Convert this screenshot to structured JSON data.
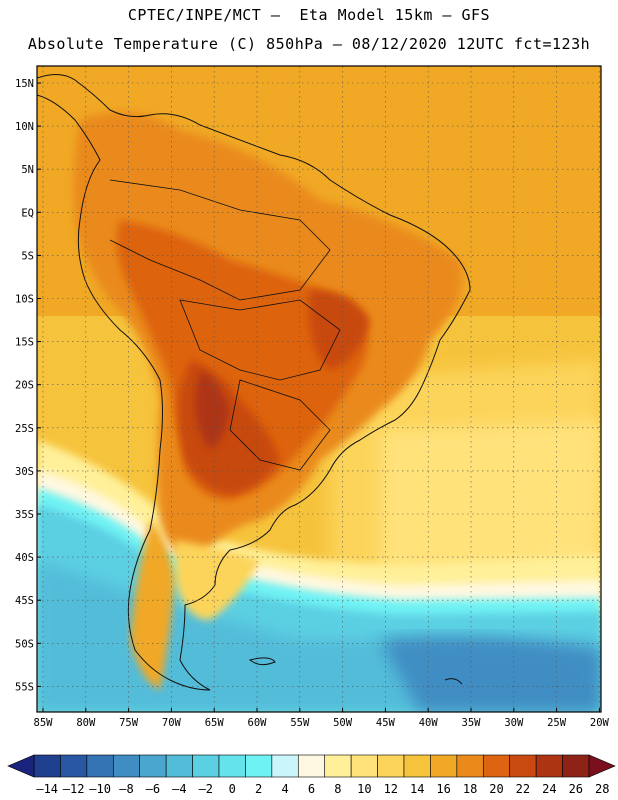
{
  "header": {
    "line1": "CPTEC/INPE/MCT –  Eta Model 15km – GFS",
    "line2": "Absolute Temperature (C) 850hPa – 08/12/2020 12UTC fct=123h"
  },
  "axes": {
    "lat_labels": [
      "15N",
      "10N",
      "5N",
      "EQ",
      "5S",
      "10S",
      "15S",
      "20S",
      "25S",
      "30S",
      "35S",
      "40S",
      "45S",
      "50S",
      "55S"
    ],
    "lon_labels": [
      "85W",
      "80W",
      "75W",
      "70W",
      "65W",
      "60W",
      "55W",
      "50W",
      "45W",
      "40W",
      "35W",
      "30W",
      "25W",
      "20W"
    ]
  },
  "colorbar": {
    "labels": [
      "–14",
      "–12",
      "–10",
      "–8",
      "–6",
      "–4",
      "–2",
      "0",
      "2",
      "4",
      "6",
      "8",
      "10",
      "12",
      "14",
      "16",
      "18",
      "20",
      "22",
      "24",
      "26",
      "28"
    ],
    "under_color": "#1a237e",
    "over_color": "#7a0f1e",
    "colors": [
      "#1f3f8f",
      "#2a57a3",
      "#3473b4",
      "#3f8dc3",
      "#4aa6cf",
      "#52bcd9",
      "#5bd0e3",
      "#64e3ec",
      "#6ff2f4",
      "#c8f6fb",
      "#fff8e0",
      "#fff099",
      "#ffe27a",
      "#fcd45a",
      "#f6c33c",
      "#f0a825",
      "#ea8a1a",
      "#dd6410",
      "#c84a10",
      "#ad3413",
      "#8e2217"
    ]
  },
  "colors": {
    "ocean_cold": "#40cde4",
    "ocean_cool": "#66e2ee",
    "ocean_mild": "#fff29a",
    "ocean_warm": "#f6c33c",
    "land_hot": "#ea8a1a",
    "land_hotter": "#dd6410",
    "land_hottest": "#c84a10"
  }
}
